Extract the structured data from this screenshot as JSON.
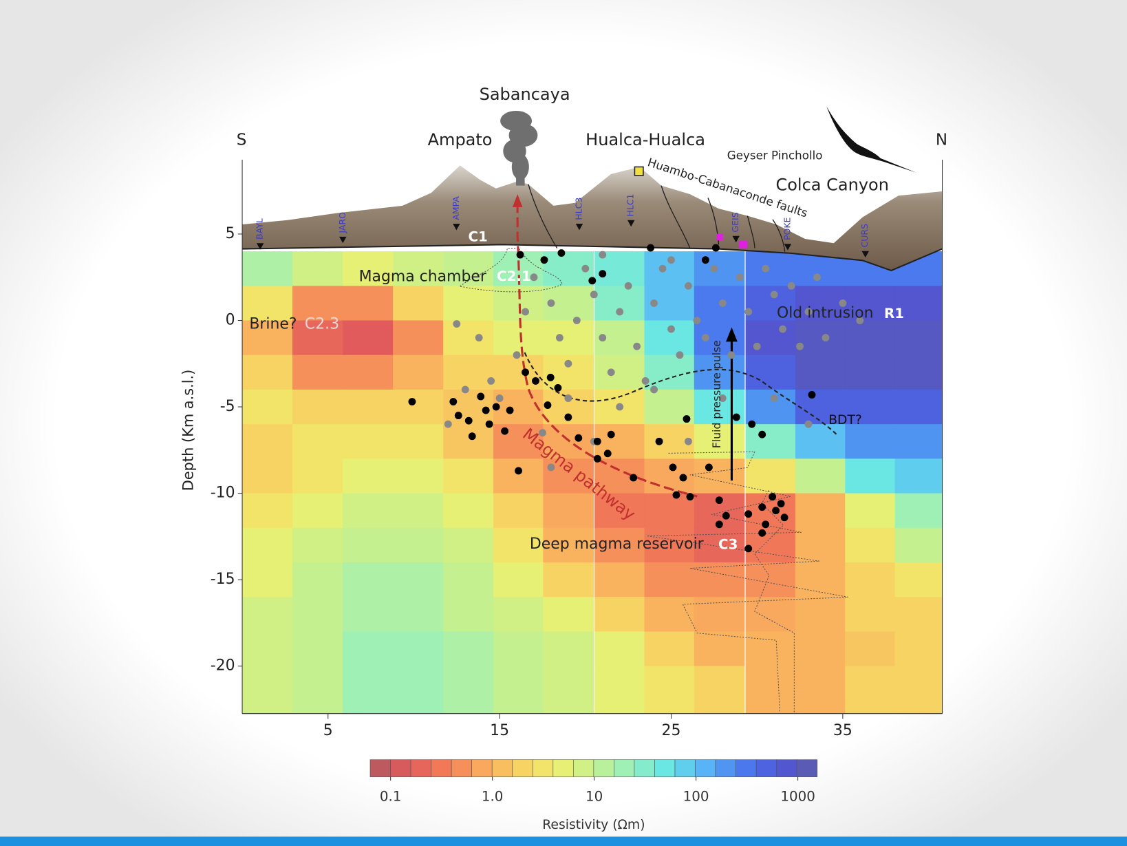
{
  "chart_data": {
    "type": "heatmap",
    "x_label": "",
    "y_label": "Depth (Km a.s.l.)",
    "xlim": [
      0,
      40.8
    ],
    "ylim": [
      -22.75,
      9.3
    ],
    "xticks": [
      5,
      15,
      25,
      35
    ],
    "yticks": [
      5,
      0,
      -5,
      -10,
      -15,
      -20
    ],
    "x": [
      1.46,
      4.39,
      7.32,
      10.25,
      13.18,
      16.1,
      19.0,
      22.0,
      24.9,
      27.8,
      30.8,
      33.7,
      36.6,
      39.5
    ],
    "y": [
      3,
      1,
      -1,
      -3,
      -5,
      -7,
      -9,
      -11,
      -13,
      -15,
      -17,
      -19,
      -21,
      -23
    ],
    "values": [
      [
        15,
        8,
        5,
        8,
        10,
        20,
        30,
        40,
        100,
        200,
        300,
        300,
        300,
        300
      ],
      [
        3,
        0.5,
        0.5,
        2,
        5,
        8,
        10,
        30,
        100,
        300,
        500,
        800,
        800,
        800
      ],
      [
        1,
        0.2,
        0.15,
        0.5,
        3,
        5,
        5,
        10,
        50,
        300,
        800,
        1000,
        1000,
        1000
      ],
      [
        2,
        0.5,
        0.5,
        1,
        2,
        2,
        3,
        8,
        30,
        200,
        500,
        1000,
        1000,
        1000
      ],
      [
        3,
        2,
        2,
        2,
        1.5,
        1,
        2,
        3,
        10,
        50,
        200,
        500,
        500,
        500
      ],
      [
        2,
        3,
        3,
        3,
        1.5,
        0.5,
        0.8,
        1,
        2,
        5,
        30,
        100,
        200,
        200
      ],
      [
        2,
        3,
        5,
        5,
        3,
        1,
        0.5,
        0.5,
        0.8,
        1,
        3,
        10,
        50,
        80
      ],
      [
        3,
        5,
        8,
        8,
        5,
        2,
        0.8,
        0.3,
        0.3,
        0.2,
        0.3,
        1,
        5,
        20
      ],
      [
        5,
        8,
        10,
        10,
        8,
        3,
        1,
        0.5,
        0.3,
        0.2,
        0.3,
        1,
        3,
        10
      ],
      [
        5,
        10,
        15,
        15,
        10,
        5,
        2,
        1,
        0.5,
        0.5,
        0.5,
        1,
        2,
        3
      ],
      [
        8,
        10,
        15,
        15,
        10,
        8,
        5,
        2,
        1,
        0.8,
        0.8,
        1,
        2,
        2
      ],
      [
        8,
        10,
        20,
        20,
        15,
        10,
        8,
        5,
        2,
        1,
        1,
        1,
        1.5,
        2
      ],
      [
        8,
        10,
        20,
        20,
        15,
        10,
        8,
        5,
        3,
        2,
        1,
        1,
        2,
        2
      ],
      [
        8,
        10,
        20,
        20,
        15,
        10,
        8,
        5,
        3,
        2,
        1,
        1,
        2,
        2
      ]
    ],
    "colormap": [
      "#b05a62",
      "#e05a5c",
      "#f47c58",
      "#f9a85e",
      "#f8d062",
      "#eef06e",
      "#c6f08e",
      "#96f0bc",
      "#66e6e6",
      "#58b4f6",
      "#4a7cee",
      "#5054d8",
      "#5c5ea8"
    ],
    "clim": [
      0.063,
      1550
    ],
    "clog": true,
    "cticks": [
      0.1,
      {
        "value": 1,
        "label": "1.0"
      },
      10,
      100,
      1000
    ],
    "clabel": "Resistivity (Ωm)",
    "overlay": {
      "type": "scatter",
      "series": [
        {
          "color": "#888888",
          "x": [
            13.8,
            14.5,
            15,
            13,
            12,
            16,
            16.5,
            17,
            18,
            18.5,
            19,
            19.5,
            20,
            20.5,
            21,
            21.5,
            22,
            22.5,
            23,
            23.5,
            24,
            24.5,
            25,
            25.5,
            26,
            26.5,
            27,
            27.5,
            28,
            28.5,
            29,
            29.5,
            30,
            30.5,
            31,
            31.5,
            32,
            32.5,
            33,
            33.5,
            34,
            35,
            36,
            19,
            22,
            24,
            28,
            31,
            33,
            17.5,
            20.5,
            26,
            12.5,
            18,
            25,
            21
          ],
          "values": [
            -1,
            -3.5,
            -4.5,
            -4,
            -6,
            -2,
            0.5,
            2.5,
            1,
            -1,
            -2.5,
            0,
            3,
            1.5,
            -1,
            -3,
            0.5,
            2,
            -1.5,
            -3.5,
            1,
            3,
            -0.5,
            -2,
            2,
            0,
            -1,
            3,
            1,
            -2,
            2.5,
            0.5,
            -1.5,
            3,
            1.5,
            -0.5,
            2,
            -1.5,
            0.5,
            2.5,
            -1,
            1,
            0,
            -4.5,
            -5,
            -4,
            -4.5,
            -4.5,
            -6,
            -6.5,
            -7,
            -7,
            -0.2,
            -8.5,
            3.5,
            3.8
          ]
        },
        {
          "color": "#000000",
          "x": [
            9.9,
            13.9,
            12.3,
            12.6,
            14.2,
            14.8,
            15.6,
            13.2,
            14.4,
            13.4,
            15.3,
            16.5,
            17.1,
            17.97,
            18.4,
            17.8,
            19,
            19.6,
            20.7,
            21.5,
            21.3,
            20.7,
            22.8,
            24.3,
            25.1,
            25.7,
            25.3,
            26.1,
            27.2,
            25.9,
            28.8,
            29.7,
            30.3,
            27.8,
            28.2,
            29.5,
            30.3,
            30.9,
            31.1,
            31.6,
            30.5,
            31.4,
            30.3,
            29.5,
            27.8,
            33.2,
            16.1,
            18.6,
            21,
            20.4,
            23.8,
            27,
            27.6,
            17.6,
            16.2
          ],
          "values": [
            -4.7,
            -4.4,
            -4.7,
            -5.5,
            -5.2,
            -5,
            -5.2,
            -5.8,
            -6,
            -6.7,
            -6.4,
            -3,
            -3.5,
            -3.3,
            -3.9,
            -4.9,
            -5.6,
            -6.8,
            -7,
            -6.6,
            -7.7,
            -8,
            -9.1,
            -7,
            -8.5,
            -9.1,
            -10.1,
            -10.2,
            -8.5,
            -5.7,
            -5.6,
            -6,
            -6.6,
            -10.4,
            -11.3,
            -11.2,
            -10.8,
            -10.2,
            -11,
            -11.4,
            -11.8,
            -10.6,
            -12.3,
            -13.2,
            -11.8,
            -4.3,
            -8.7,
            3.9,
            2.7,
            2.3,
            4.2,
            3.5,
            4.2,
            3.5,
            3.8
          ]
        }
      ]
    },
    "annotations": [
      "S",
      "N",
      "Sabancaya",
      "Ampato",
      "Hualca-Hualca",
      "Geyser Pinchollo",
      "Huambo-Cabanaconde faults",
      "Colca Canyon",
      "C1",
      "Magma chamber",
      "C2.1",
      "Brine?",
      "C2.3",
      "Old intrusion",
      "R1",
      "Fluid pressure pulse",
      "BDT?",
      "Magma pathway",
      "Deep magma reservoir",
      "C3"
    ],
    "stations": [
      "BAYL",
      "JARO",
      "AMPA",
      "HLC3",
      "HLC1",
      "GEIS",
      "POKE",
      "CURS"
    ]
  }
}
